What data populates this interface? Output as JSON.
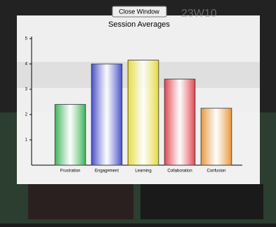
{
  "ui": {
    "close_button": "Close Window",
    "background_label": "23W10"
  },
  "chart_data": {
    "type": "bar",
    "title": "Session Averages",
    "categories": [
      "Frustration",
      "Engagement",
      "Learning",
      "Collaboration",
      "Confusion"
    ],
    "values": [
      2.4,
      4.0,
      4.15,
      3.4,
      2.25
    ],
    "colors": [
      "#3cb45a",
      "#4650c8",
      "#e6dc3c",
      "#e04650",
      "#e8963c"
    ],
    "ylim": [
      0,
      5
    ],
    "yticks": [
      1,
      2,
      3,
      4,
      5
    ],
    "grid": false
  }
}
